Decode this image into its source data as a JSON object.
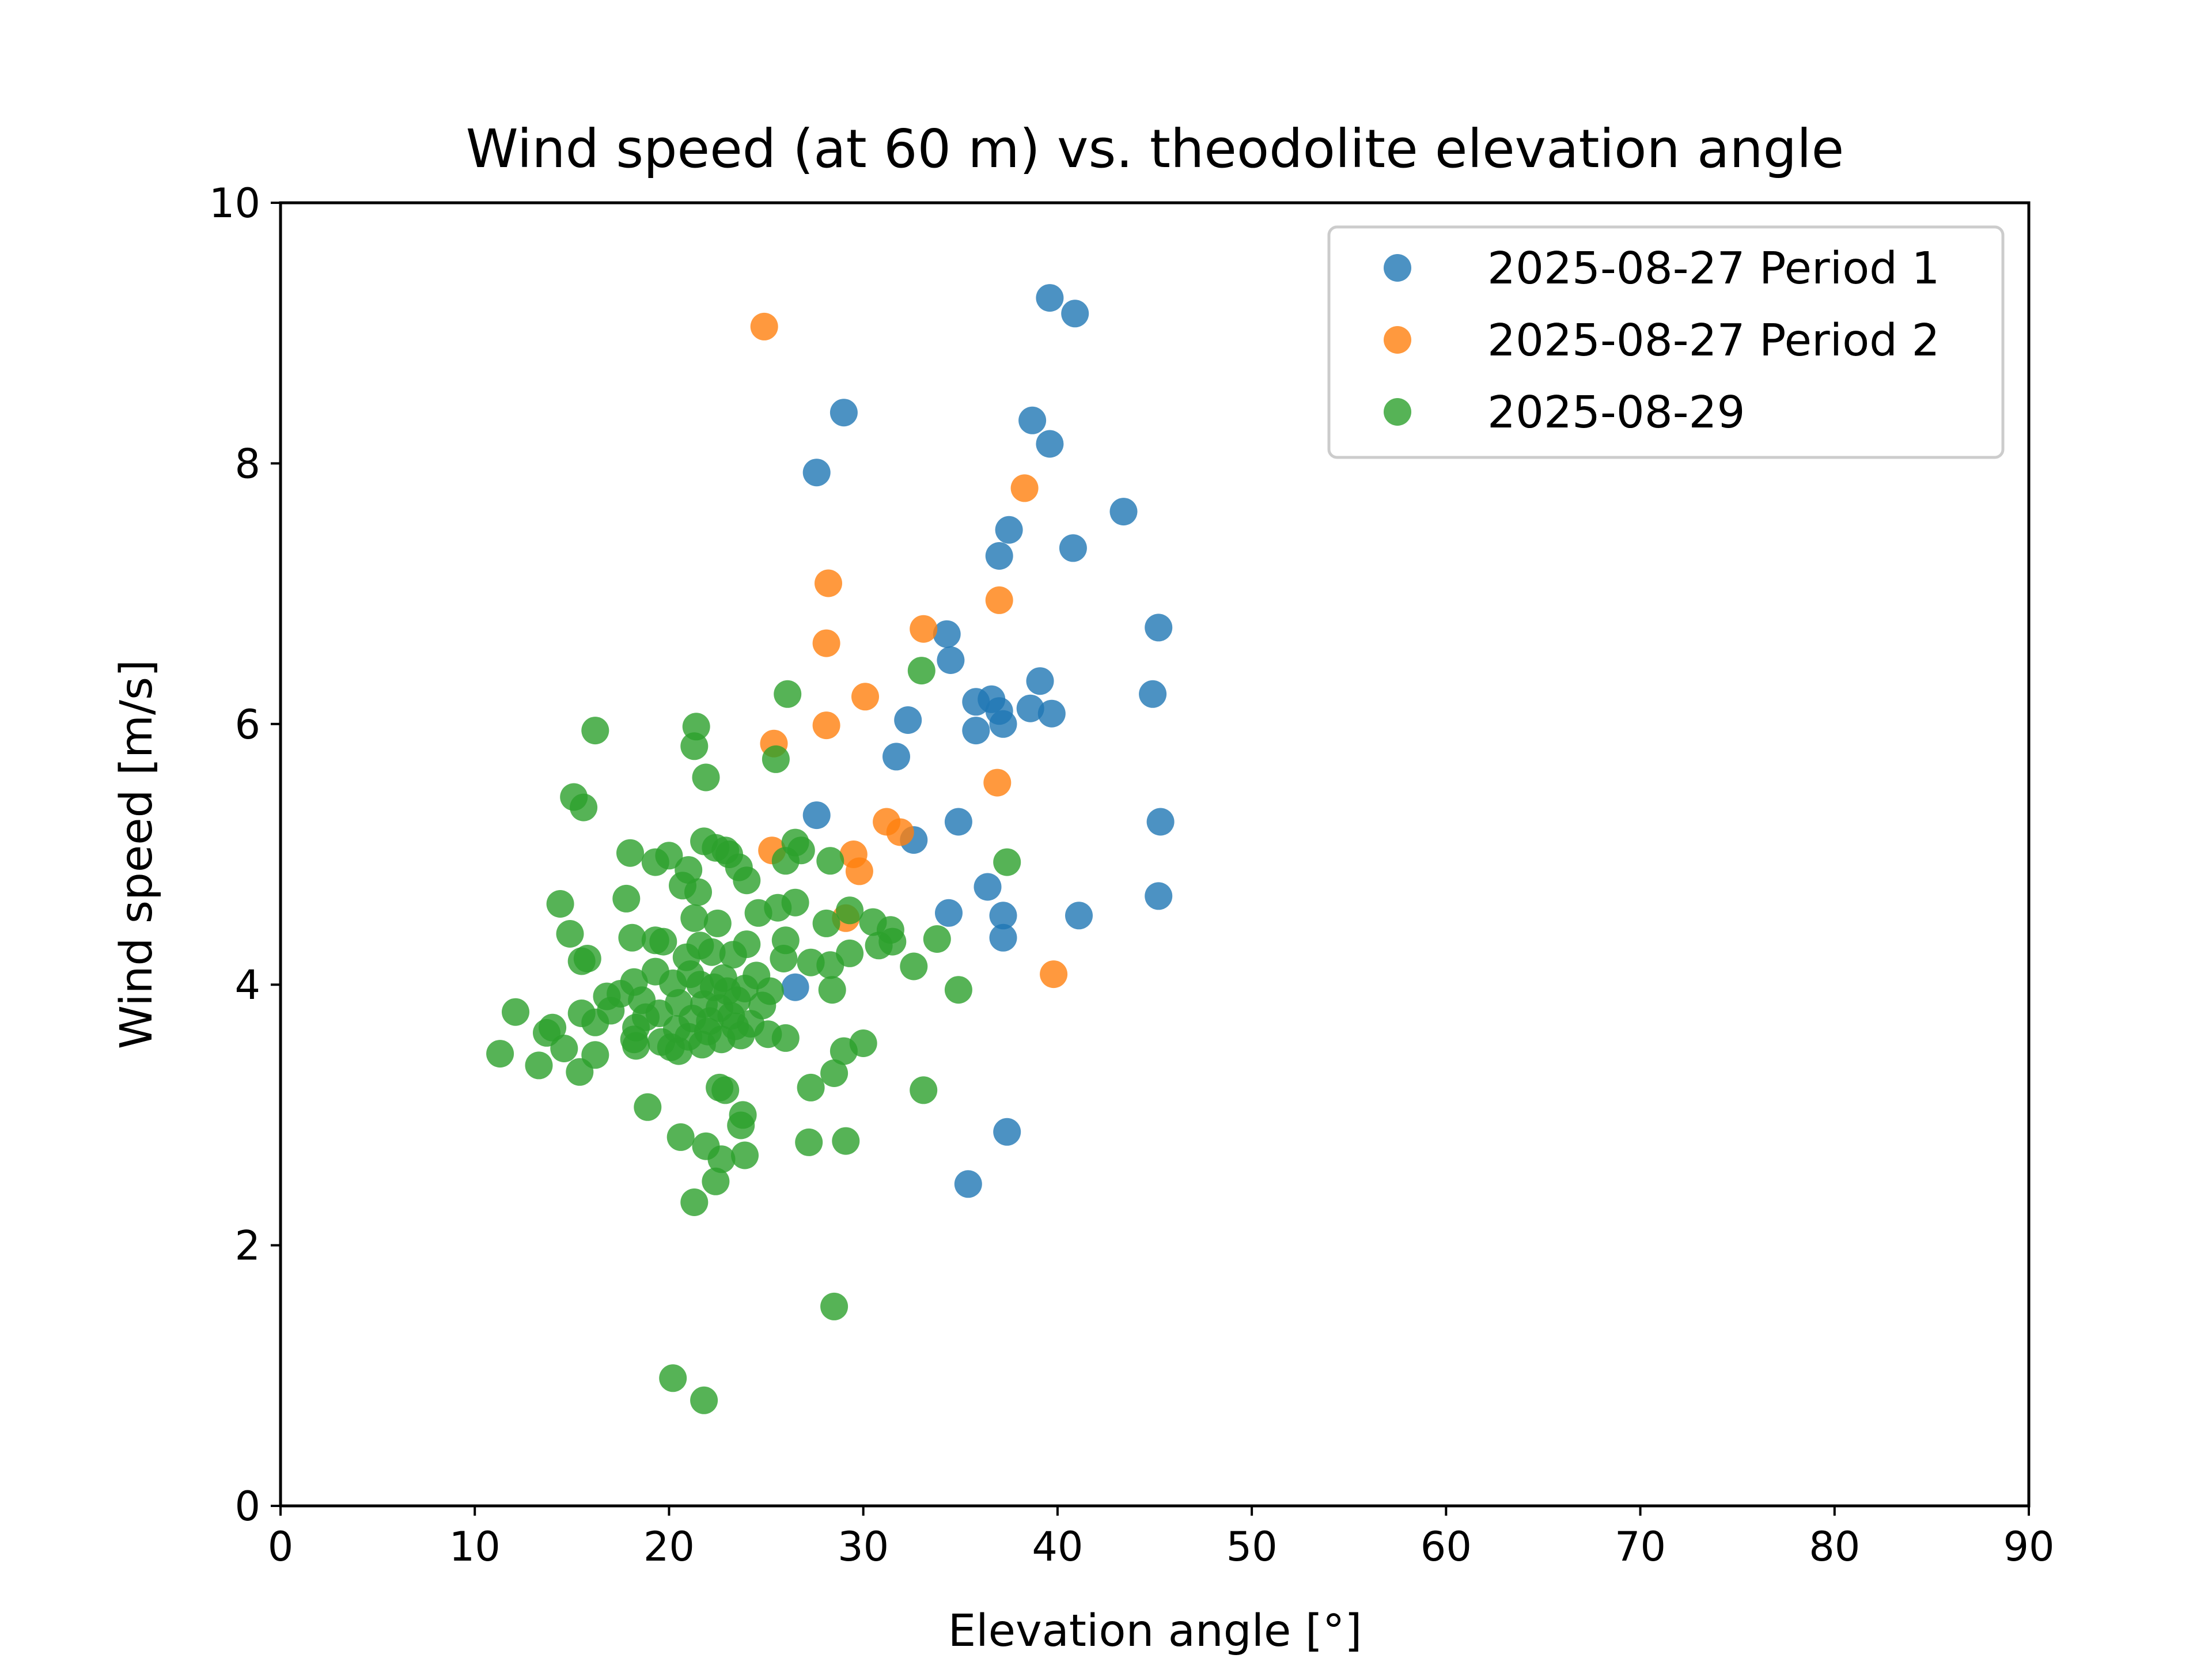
{
  "chart_data": {
    "type": "scatter",
    "title": "Wind speed (at 60 m) vs. theodolite elevation angle",
    "xlabel": "Elevation angle [°]",
    "ylabel": "Wind speed [m/s]",
    "xlim": [
      0,
      90
    ],
    "ylim": [
      0,
      10
    ],
    "xticks": [
      0,
      10,
      20,
      30,
      40,
      50,
      60,
      70,
      80,
      90
    ],
    "yticks": [
      0,
      2,
      4,
      6,
      8,
      10
    ],
    "grid": false,
    "legend_position": "top-right",
    "series": [
      {
        "name": "2025-08-27 Period 1",
        "color": "#1f77b4",
        "points": [
          [
            39.6,
            9.27
          ],
          [
            40.9,
            9.15
          ],
          [
            29.0,
            8.39
          ],
          [
            27.6,
            7.93
          ],
          [
            38.7,
            8.33
          ],
          [
            39.6,
            8.15
          ],
          [
            43.4,
            7.63
          ],
          [
            37.5,
            7.49
          ],
          [
            37.0,
            7.29
          ],
          [
            40.8,
            7.35
          ],
          [
            45.2,
            6.74
          ],
          [
            34.3,
            6.69
          ],
          [
            34.5,
            6.49
          ],
          [
            39.1,
            6.33
          ],
          [
            44.9,
            6.23
          ],
          [
            35.8,
            6.17
          ],
          [
            36.6,
            6.19
          ],
          [
            37.0,
            6.1
          ],
          [
            38.6,
            6.12
          ],
          [
            39.7,
            6.08
          ],
          [
            32.3,
            6.03
          ],
          [
            35.8,
            5.95
          ],
          [
            37.2,
            6.0
          ],
          [
            31.7,
            5.75
          ],
          [
            27.6,
            5.3
          ],
          [
            34.9,
            5.25
          ],
          [
            45.3,
            5.25
          ],
          [
            32.6,
            5.11
          ],
          [
            36.4,
            4.75
          ],
          [
            45.2,
            4.68
          ],
          [
            34.4,
            4.55
          ],
          [
            37.2,
            4.53
          ],
          [
            41.1,
            4.53
          ],
          [
            37.2,
            4.36
          ],
          [
            26.5,
            3.98
          ],
          [
            37.4,
            2.87
          ],
          [
            35.4,
            2.47
          ]
        ]
      },
      {
        "name": "2025-08-27 Period 2",
        "color": "#ff7f0e",
        "points": [
          [
            24.9,
            9.05
          ],
          [
            38.3,
            7.81
          ],
          [
            28.2,
            7.08
          ],
          [
            37.0,
            6.95
          ],
          [
            33.1,
            6.73
          ],
          [
            28.1,
            6.62
          ],
          [
            30.1,
            6.21
          ],
          [
            28.1,
            5.99
          ],
          [
            25.4,
            5.85
          ],
          [
            36.9,
            5.55
          ],
          [
            31.2,
            5.25
          ],
          [
            31.9,
            5.17
          ],
          [
            25.3,
            5.03
          ],
          [
            29.5,
            5.0
          ],
          [
            29.8,
            4.87
          ],
          [
            29.1,
            4.51
          ],
          [
            39.8,
            4.08
          ]
        ]
      },
      {
        "name": "2025-08-29",
        "color": "#2ca02c",
        "points": [
          [
            16.2,
            5.95
          ],
          [
            21.4,
            5.98
          ],
          [
            21.3,
            5.83
          ],
          [
            21.9,
            5.59
          ],
          [
            15.1,
            5.44
          ],
          [
            15.6,
            5.36
          ],
          [
            25.5,
            5.73
          ],
          [
            26.1,
            6.23
          ],
          [
            33.0,
            6.41
          ],
          [
            21.8,
            5.1
          ],
          [
            22.4,
            5.05
          ],
          [
            22.9,
            5.03
          ],
          [
            23.1,
            5.0
          ],
          [
            26.5,
            5.09
          ],
          [
            26.8,
            5.03
          ],
          [
            18.0,
            5.01
          ],
          [
            20.0,
            4.99
          ],
          [
            19.3,
            4.94
          ],
          [
            21.0,
            4.88
          ],
          [
            23.6,
            4.9
          ],
          [
            26.0,
            4.95
          ],
          [
            28.3,
            4.95
          ],
          [
            37.4,
            4.94
          ],
          [
            24.0,
            4.8
          ],
          [
            20.7,
            4.76
          ],
          [
            21.5,
            4.71
          ],
          [
            17.8,
            4.66
          ],
          [
            14.4,
            4.62
          ],
          [
            25.6,
            4.59
          ],
          [
            26.5,
            4.63
          ],
          [
            29.3,
            4.57
          ],
          [
            21.3,
            4.51
          ],
          [
            22.5,
            4.47
          ],
          [
            24.6,
            4.55
          ],
          [
            28.1,
            4.47
          ],
          [
            30.5,
            4.48
          ],
          [
            31.4,
            4.42
          ],
          [
            14.9,
            4.39
          ],
          [
            18.1,
            4.36
          ],
          [
            19.3,
            4.34
          ],
          [
            19.7,
            4.33
          ],
          [
            21.6,
            4.3
          ],
          [
            24.0,
            4.31
          ],
          [
            26.0,
            4.34
          ],
          [
            30.8,
            4.3
          ],
          [
            31.5,
            4.33
          ],
          [
            33.8,
            4.35
          ],
          [
            15.5,
            4.18
          ],
          [
            15.8,
            4.2
          ],
          [
            20.9,
            4.21
          ],
          [
            22.2,
            4.25
          ],
          [
            23.3,
            4.23
          ],
          [
            25.9,
            4.2
          ],
          [
            27.3,
            4.17
          ],
          [
            28.3,
            4.15
          ],
          [
            29.3,
            4.24
          ],
          [
            32.6,
            4.14
          ],
          [
            19.3,
            4.1
          ],
          [
            21.1,
            4.08
          ],
          [
            22.8,
            4.05
          ],
          [
            24.5,
            4.07
          ],
          [
            18.2,
            4.02
          ],
          [
            20.2,
            4.01
          ],
          [
            21.6,
            4.0
          ],
          [
            22.3,
            3.98
          ],
          [
            23.0,
            3.95
          ],
          [
            23.9,
            3.97
          ],
          [
            25.2,
            3.95
          ],
          [
            28.4,
            3.96
          ],
          [
            34.9,
            3.96
          ],
          [
            16.8,
            3.91
          ],
          [
            17.5,
            3.93
          ],
          [
            18.6,
            3.88
          ],
          [
            20.5,
            3.86
          ],
          [
            21.8,
            3.85
          ],
          [
            22.6,
            3.82
          ],
          [
            23.5,
            3.88
          ],
          [
            24.8,
            3.84
          ],
          [
            12.1,
            3.79
          ],
          [
            15.5,
            3.78
          ],
          [
            17.0,
            3.8
          ],
          [
            18.8,
            3.75
          ],
          [
            19.5,
            3.78
          ],
          [
            21.2,
            3.74
          ],
          [
            22.1,
            3.72
          ],
          [
            23.2,
            3.76
          ],
          [
            24.2,
            3.7
          ],
          [
            16.2,
            3.71
          ],
          [
            18.3,
            3.67
          ],
          [
            20.4,
            3.66
          ],
          [
            22.0,
            3.64
          ],
          [
            23.4,
            3.68
          ],
          [
            14.0,
            3.67
          ],
          [
            13.7,
            3.63
          ],
          [
            18.2,
            3.58
          ],
          [
            19.6,
            3.56
          ],
          [
            21.0,
            3.6
          ],
          [
            22.7,
            3.58
          ],
          [
            23.7,
            3.61
          ],
          [
            25.1,
            3.62
          ],
          [
            26.0,
            3.59
          ],
          [
            18.3,
            3.53
          ],
          [
            20.1,
            3.52
          ],
          [
            21.7,
            3.54
          ],
          [
            30.0,
            3.55
          ],
          [
            29.0,
            3.49
          ],
          [
            11.3,
            3.47
          ],
          [
            14.6,
            3.51
          ],
          [
            16.2,
            3.46
          ],
          [
            20.5,
            3.49
          ],
          [
            13.3,
            3.38
          ],
          [
            15.4,
            3.33
          ],
          [
            28.5,
            3.32
          ],
          [
            27.3,
            3.21
          ],
          [
            22.6,
            3.21
          ],
          [
            22.9,
            3.19
          ],
          [
            33.1,
            3.19
          ],
          [
            18.9,
            3.06
          ],
          [
            23.8,
            3.0
          ],
          [
            23.7,
            2.92
          ],
          [
            20.6,
            2.83
          ],
          [
            21.9,
            2.76
          ],
          [
            27.2,
            2.79
          ],
          [
            29.1,
            2.8
          ],
          [
            23.9,
            2.69
          ],
          [
            22.7,
            2.66
          ],
          [
            22.4,
            2.49
          ],
          [
            21.3,
            2.33
          ],
          [
            28.5,
            1.53
          ],
          [
            20.2,
            0.98
          ],
          [
            21.8,
            0.81
          ]
        ]
      }
    ]
  }
}
